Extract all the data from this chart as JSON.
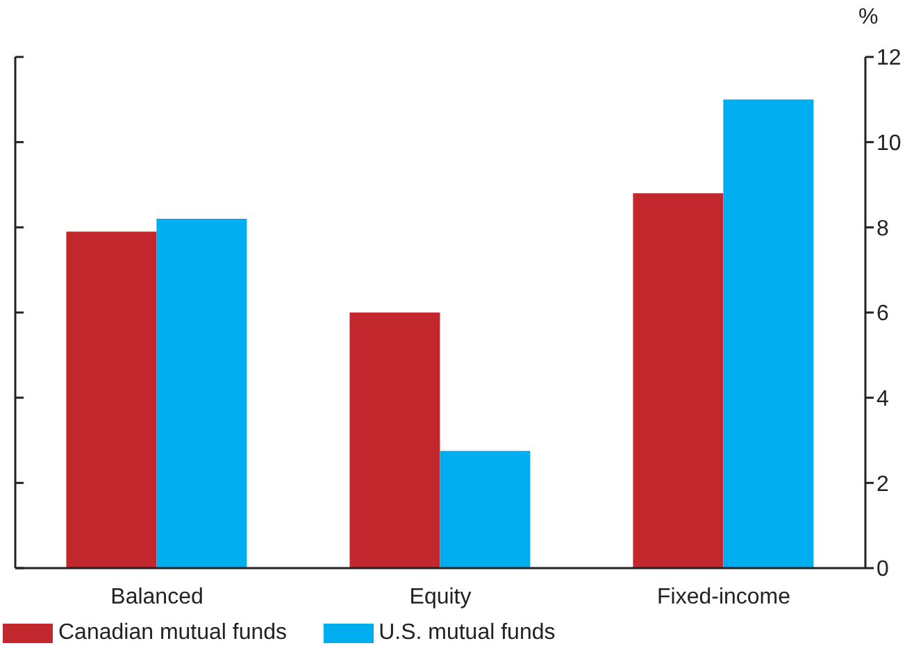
{
  "chart_data": {
    "type": "bar",
    "categories": [
      "Balanced",
      "Equity",
      "Fixed-income"
    ],
    "series": [
      {
        "name": "Canadian mutual funds",
        "color": "#c1272d",
        "values": [
          7.9,
          6.0,
          8.8
        ]
      },
      {
        "name": "U.S. mutual funds",
        "color": "#00aeef",
        "values": [
          8.2,
          2.75,
          11.0
        ]
      }
    ],
    "ylabel": "%",
    "ylim": [
      0,
      12
    ],
    "yticks": [
      0,
      2,
      4,
      6,
      8,
      10,
      12
    ],
    "grid": false,
    "legend": "bottom left"
  }
}
